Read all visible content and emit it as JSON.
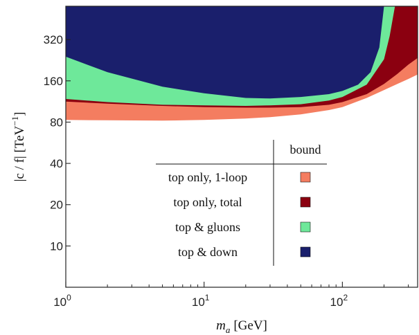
{
  "chart_data": {
    "type": "area",
    "x_scale": "log",
    "y_scale": "log",
    "xlim": [
      1,
      350
    ],
    "ylim": [
      5,
      560
    ],
    "x_ticks": [
      {
        "value": 1,
        "base": "10",
        "exp": "0"
      },
      {
        "value": 10,
        "base": "10",
        "exp": "1"
      },
      {
        "value": 100,
        "base": "10",
        "exp": "2"
      }
    ],
    "y_ticks": [
      {
        "value": 10,
        "label": "10"
      },
      {
        "value": 20,
        "label": "20"
      },
      {
        "value": 40,
        "label": "40"
      },
      {
        "value": 80,
        "label": "80"
      },
      {
        "value": 160,
        "label": "160"
      },
      {
        "value": 320,
        "label": "320"
      }
    ],
    "xlabel": {
      "var": "m",
      "sub": "a",
      "unit": "[GeV]"
    },
    "ylabel": {
      "text": "|c / f| [TeV",
      "sup": "−1",
      "tail": "]"
    },
    "grid": false,
    "legend": {
      "placement": "center",
      "header": "bound",
      "entries": [
        "top only, 1-loop",
        "top only, total",
        "top & gluons",
        "top & down"
      ]
    },
    "series": [
      {
        "name": "top only, 1-loop",
        "color": "#f47d60",
        "x": [
          1,
          2,
          5,
          10,
          20,
          30,
          50,
          80,
          100,
          150,
          200,
          250,
          300,
          350
        ],
        "y": [
          83,
          82.5,
          82,
          83,
          85,
          87,
          91,
          98,
          103,
          120,
          137,
          152,
          165,
          178
        ]
      },
      {
        "name": "top only, total",
        "color": "#8b0010",
        "x": [
          1,
          2,
          5,
          10,
          20,
          30,
          50,
          80,
          100,
          150,
          200,
          250,
          300,
          350
        ],
        "y": [
          113,
          109,
          105,
          103,
          102,
          102,
          103,
          107,
          112,
          128,
          152,
          180,
          210,
          235
        ]
      },
      {
        "name": "top & gluons",
        "color": "#6ee89a",
        "x": [
          1,
          2,
          5,
          10,
          20,
          30,
          50,
          80,
          100,
          150,
          200,
          220,
          240
        ],
        "y": [
          118,
          112,
          107,
          106,
          105,
          106,
          108,
          115,
          122,
          150,
          230,
          340,
          560
        ]
      },
      {
        "name": "top & down",
        "color": "#1a1f6c",
        "x": [
          1,
          2,
          5,
          10,
          20,
          30,
          50,
          80,
          100,
          130,
          160,
          185,
          200
        ],
        "y": [
          240,
          185,
          145,
          130,
          120,
          119,
          122,
          128,
          135,
          150,
          185,
          280,
          560
        ]
      }
    ]
  }
}
